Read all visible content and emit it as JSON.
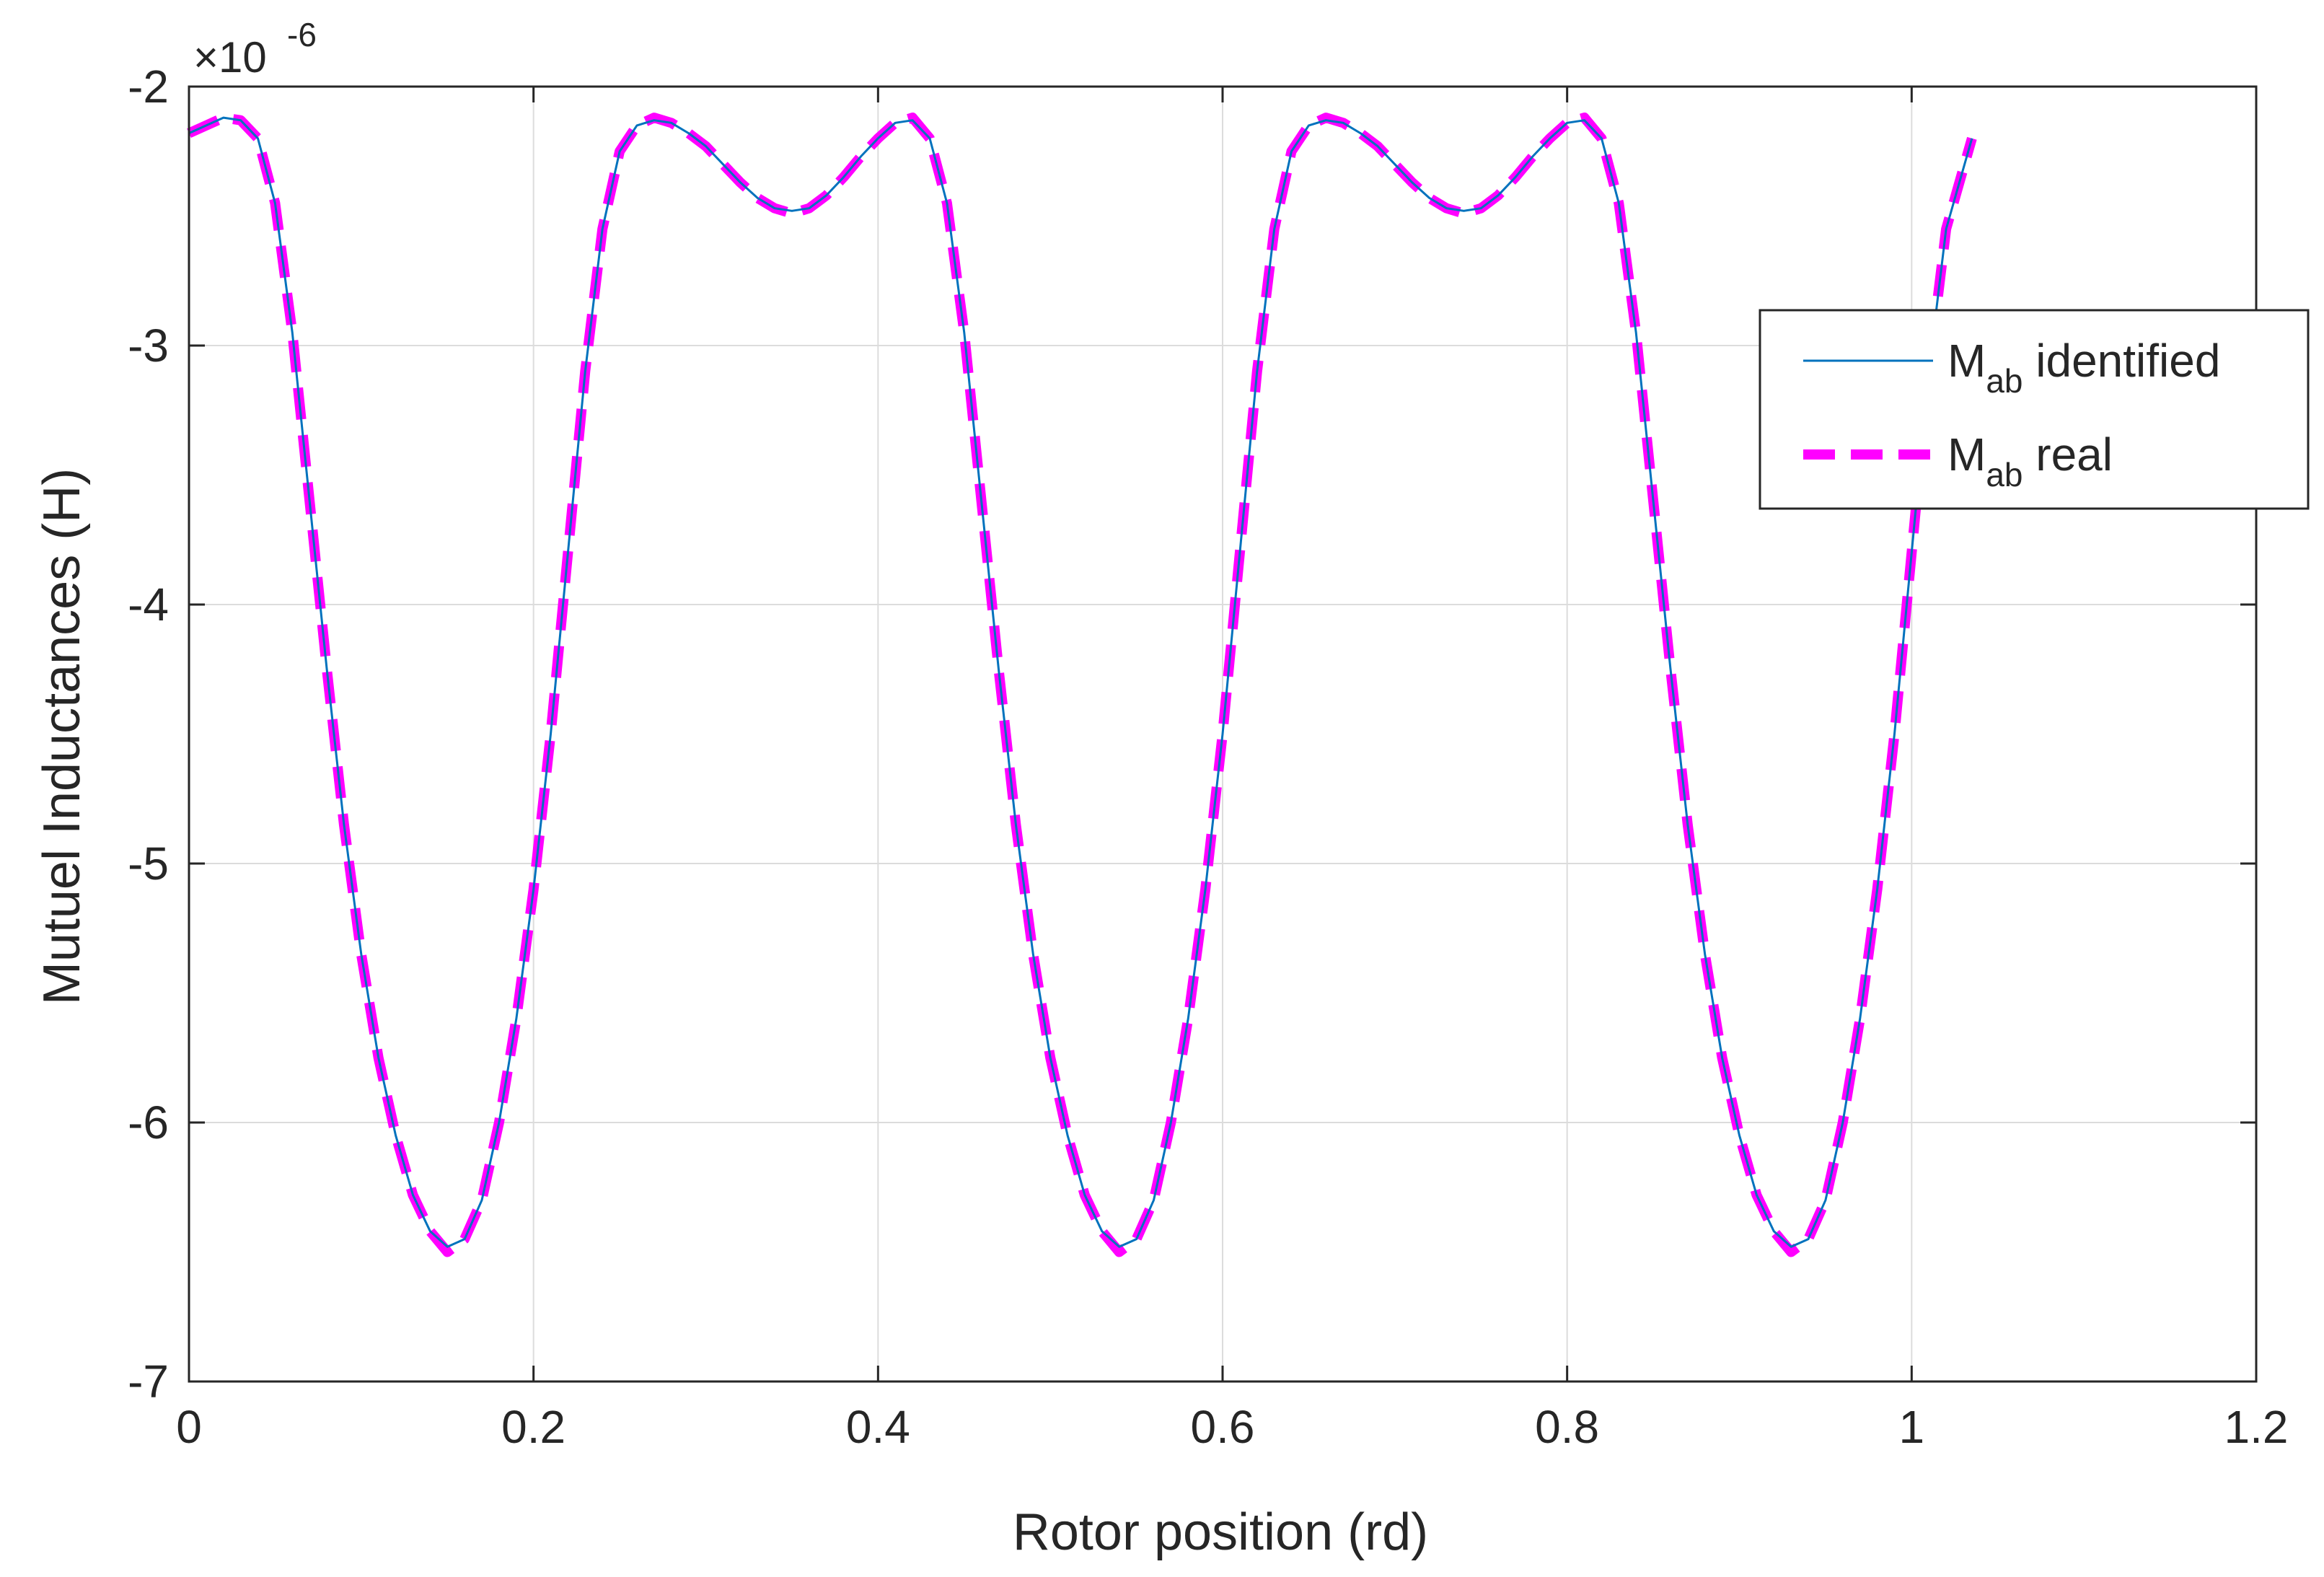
{
  "chart_data": {
    "type": "line",
    "xlabel": "Rotor position (rd)",
    "ylabel": "Mutuel Inductances (H)",
    "y_multiplier_label": "×10",
    "y_multiplier_exponent": "-6",
    "xlim": [
      0,
      1.2
    ],
    "ylim": [
      -7,
      -2
    ],
    "x_ticks": [
      0,
      0.2,
      0.4,
      0.6,
      0.8,
      1,
      1.2
    ],
    "x_tick_labels": [
      "0",
      "0.2",
      "0.4",
      "0.6",
      "0.8",
      "1",
      "1.2"
    ],
    "y_ticks": [
      -7,
      -6,
      -5,
      -4,
      -3,
      -2
    ],
    "y_tick_labels": [
      "-7",
      "-6",
      "-5",
      "-4",
      "-3",
      "-2"
    ],
    "grid": true,
    "legend_position": "top-right",
    "series": [
      {
        "name_main": "M",
        "name_sub": "ab",
        "name_rest": " identified",
        "color": "#0072BD",
        "style": "solid",
        "x": [
          0,
          0.01,
          0.02,
          0.03,
          0.04,
          0.05,
          0.06,
          0.07,
          0.08,
          0.09,
          0.1,
          0.11,
          0.12,
          0.13,
          0.14,
          0.15,
          0.16,
          0.17,
          0.18,
          0.19,
          0.2,
          0.21,
          0.22,
          0.23,
          0.24,
          0.25,
          0.26,
          0.27,
          0.28,
          0.29,
          0.3,
          0.31,
          0.32,
          0.33,
          0.34,
          0.35,
          0.36,
          0.37,
          0.38,
          0.39,
          0.4,
          0.41,
          0.42,
          0.43,
          0.44,
          0.45,
          0.46,
          0.47,
          0.48,
          0.49,
          0.5,
          0.51,
          0.52,
          0.53,
          0.54,
          0.55,
          0.56,
          0.57,
          0.58,
          0.59,
          0.6,
          0.61,
          0.62,
          0.63,
          0.64,
          0.65,
          0.66,
          0.67,
          0.68,
          0.69,
          0.7,
          0.71,
          0.72,
          0.73,
          0.74,
          0.75,
          0.76,
          0.77,
          0.78,
          0.79,
          0.8,
          0.81,
          0.82,
          0.83,
          0.84,
          0.85,
          0.86,
          0.87,
          0.88,
          0.89,
          0.9,
          0.91,
          0.92,
          0.93,
          0.94,
          0.95,
          0.96,
          0.97,
          0.98,
          0.99,
          1.0,
          1.01,
          1.02,
          1.035
        ],
        "y": [
          -2.18,
          -2.15,
          -2.12,
          -2.13,
          -2.2,
          -2.45,
          -2.95,
          -3.6,
          -4.25,
          -4.85,
          -5.35,
          -5.75,
          -6.05,
          -6.28,
          -6.42,
          -6.48,
          -6.45,
          -6.3,
          -6.0,
          -5.6,
          -5.1,
          -4.5,
          -3.8,
          -3.1,
          -2.55,
          -2.25,
          -2.15,
          -2.13,
          -2.14,
          -2.18,
          -2.23,
          -2.3,
          -2.37,
          -2.43,
          -2.47,
          -2.48,
          -2.47,
          -2.42,
          -2.35,
          -2.27,
          -2.2,
          -2.14,
          -2.13,
          -2.2,
          -2.45,
          -2.95,
          -3.6,
          -4.25,
          -4.85,
          -5.35,
          -5.75,
          -6.05,
          -6.28,
          -6.42,
          -6.48,
          -6.45,
          -6.3,
          -6.0,
          -5.6,
          -5.1,
          -4.5,
          -3.8,
          -3.1,
          -2.55,
          -2.25,
          -2.15,
          -2.13,
          -2.14,
          -2.18,
          -2.23,
          -2.3,
          -2.37,
          -2.43,
          -2.47,
          -2.48,
          -2.47,
          -2.42,
          -2.35,
          -2.27,
          -2.2,
          -2.14,
          -2.13,
          -2.2,
          -2.45,
          -2.95,
          -3.6,
          -4.25,
          -4.85,
          -5.35,
          -5.75,
          -6.05,
          -6.28,
          -6.42,
          -6.48,
          -6.45,
          -6.3,
          -6.0,
          -5.6,
          -5.1,
          -4.5,
          -3.8,
          -3.1,
          -2.55,
          -2.2
        ]
      },
      {
        "name_main": "M",
        "name_sub": "ab",
        "name_rest": " real",
        "color": "#FF00FF",
        "style": "dashed",
        "x": [
          0,
          0.01,
          0.02,
          0.03,
          0.04,
          0.05,
          0.06,
          0.07,
          0.08,
          0.09,
          0.1,
          0.11,
          0.12,
          0.13,
          0.14,
          0.15,
          0.16,
          0.17,
          0.18,
          0.19,
          0.2,
          0.21,
          0.22,
          0.23,
          0.24,
          0.25,
          0.26,
          0.27,
          0.28,
          0.29,
          0.3,
          0.31,
          0.32,
          0.33,
          0.34,
          0.35,
          0.36,
          0.37,
          0.38,
          0.39,
          0.4,
          0.41,
          0.42,
          0.43,
          0.44,
          0.45,
          0.46,
          0.47,
          0.48,
          0.49,
          0.5,
          0.51,
          0.52,
          0.53,
          0.54,
          0.55,
          0.56,
          0.57,
          0.58,
          0.59,
          0.6,
          0.61,
          0.62,
          0.63,
          0.64,
          0.65,
          0.66,
          0.67,
          0.68,
          0.69,
          0.7,
          0.71,
          0.72,
          0.73,
          0.74,
          0.75,
          0.76,
          0.77,
          0.78,
          0.79,
          0.8,
          0.81,
          0.82,
          0.83,
          0.84,
          0.85,
          0.86,
          0.87,
          0.88,
          0.89,
          0.9,
          0.91,
          0.92,
          0.93,
          0.94,
          0.95,
          0.96,
          0.97,
          0.98,
          0.99,
          1.0,
          1.01,
          1.02,
          1.035
        ],
        "y": [
          -2.18,
          -2.15,
          -2.12,
          -2.13,
          -2.2,
          -2.45,
          -2.95,
          -3.6,
          -4.25,
          -4.85,
          -5.35,
          -5.75,
          -6.05,
          -6.28,
          -6.42,
          -6.5,
          -6.45,
          -6.3,
          -6.0,
          -5.6,
          -5.1,
          -4.5,
          -3.8,
          -3.1,
          -2.55,
          -2.25,
          -2.15,
          -2.12,
          -2.14,
          -2.18,
          -2.23,
          -2.3,
          -2.37,
          -2.43,
          -2.47,
          -2.49,
          -2.47,
          -2.42,
          -2.35,
          -2.27,
          -2.2,
          -2.14,
          -2.12,
          -2.2,
          -2.45,
          -2.95,
          -3.6,
          -4.25,
          -4.85,
          -5.35,
          -5.75,
          -6.05,
          -6.28,
          -6.42,
          -6.5,
          -6.45,
          -6.3,
          -6.0,
          -5.6,
          -5.1,
          -4.5,
          -3.8,
          -3.1,
          -2.55,
          -2.25,
          -2.15,
          -2.12,
          -2.14,
          -2.18,
          -2.23,
          -2.3,
          -2.37,
          -2.43,
          -2.47,
          -2.49,
          -2.47,
          -2.42,
          -2.35,
          -2.27,
          -2.2,
          -2.14,
          -2.12,
          -2.2,
          -2.45,
          -2.95,
          -3.6,
          -4.25,
          -4.85,
          -5.35,
          -5.75,
          -6.05,
          -6.28,
          -6.42,
          -6.5,
          -6.45,
          -6.3,
          -6.0,
          -5.6,
          -5.1,
          -4.5,
          -3.8,
          -3.1,
          -2.55,
          -2.2
        ]
      }
    ]
  }
}
